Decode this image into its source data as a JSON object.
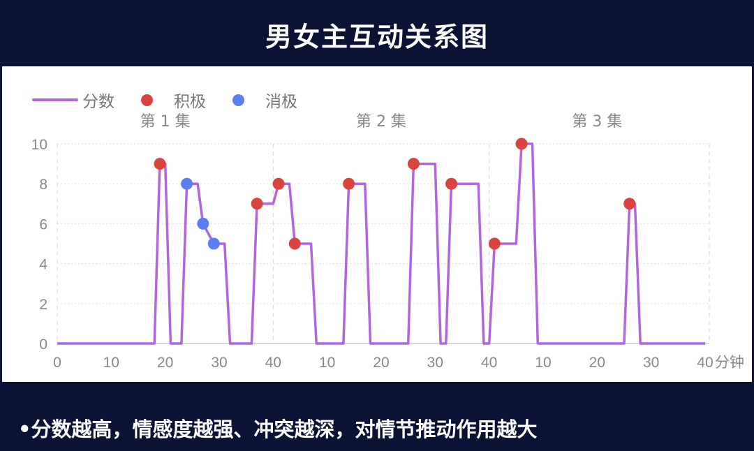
{
  "title": "男女主互动关系图",
  "footer": "•分数越高，情感度越强、冲突越深，对情节推动作用越大",
  "chart_data": {
    "type": "line",
    "title": "",
    "legend": {
      "placement": "top-left",
      "items": [
        {
          "label": "分数",
          "kind": "line",
          "color": "#b265df"
        },
        {
          "label": "积极",
          "kind": "dot",
          "color": "#d9453e"
        },
        {
          "label": "消极",
          "kind": "dot",
          "color": "#5b7ef0"
        }
      ]
    },
    "episodes": [
      "第 1 集",
      "第 2 集",
      "第 3 集"
    ],
    "xlabel": "分钟",
    "x_ticks": [
      "0",
      "10",
      "20",
      "30",
      "40",
      "10",
      "20",
      "30",
      "40",
      "10",
      "20",
      "30",
      "40"
    ],
    "y_ticks": [
      "0",
      "2",
      "4",
      "6",
      "8",
      "10"
    ],
    "ylim": [
      0,
      10
    ],
    "xlim_per_episode": [
      0,
      40
    ],
    "grid": true,
    "series": [
      {
        "name": "分数",
        "color": "#b265df",
        "points": [
          {
            "episode": 1,
            "minute": 0,
            "score": 0
          },
          {
            "episode": 1,
            "minute": 18,
            "score": 0
          },
          {
            "episode": 1,
            "minute": 19,
            "score": 9
          },
          {
            "episode": 1,
            "minute": 20,
            "score": 9
          },
          {
            "episode": 1,
            "minute": 21,
            "score": 0
          },
          {
            "episode": 1,
            "minute": 23,
            "score": 0
          },
          {
            "episode": 1,
            "minute": 24,
            "score": 8
          },
          {
            "episode": 1,
            "minute": 26,
            "score": 8
          },
          {
            "episode": 1,
            "minute": 27,
            "score": 6
          },
          {
            "episode": 1,
            "minute": 29,
            "score": 5
          },
          {
            "episode": 1,
            "minute": 31,
            "score": 5
          },
          {
            "episode": 1,
            "minute": 32,
            "score": 0
          },
          {
            "episode": 1,
            "minute": 36,
            "score": 0
          },
          {
            "episode": 1,
            "minute": 37,
            "score": 7
          },
          {
            "episode": 1,
            "minute": 40,
            "score": 7
          },
          {
            "episode": 2,
            "minute": 1,
            "score": 8
          },
          {
            "episode": 2,
            "minute": 3,
            "score": 8
          },
          {
            "episode": 2,
            "minute": 4,
            "score": 5
          },
          {
            "episode": 2,
            "minute": 7,
            "score": 5
          },
          {
            "episode": 2,
            "minute": 8,
            "score": 0
          },
          {
            "episode": 2,
            "minute": 13,
            "score": 0
          },
          {
            "episode": 2,
            "minute": 14,
            "score": 8
          },
          {
            "episode": 2,
            "minute": 17,
            "score": 8
          },
          {
            "episode": 2,
            "minute": 18,
            "score": 0
          },
          {
            "episode": 2,
            "minute": 25,
            "score": 0
          },
          {
            "episode": 2,
            "minute": 26,
            "score": 9
          },
          {
            "episode": 2,
            "minute": 30,
            "score": 9
          },
          {
            "episode": 2,
            "minute": 31,
            "score": 0
          },
          {
            "episode": 2,
            "minute": 32,
            "score": 0
          },
          {
            "episode": 2,
            "minute": 33,
            "score": 8
          },
          {
            "episode": 2,
            "minute": 38,
            "score": 8
          },
          {
            "episode": 2,
            "minute": 39,
            "score": 0
          },
          {
            "episode": 2,
            "minute": 40,
            "score": 0
          },
          {
            "episode": 3,
            "minute": 1,
            "score": 5
          },
          {
            "episode": 3,
            "minute": 5,
            "score": 5
          },
          {
            "episode": 3,
            "minute": 6,
            "score": 10
          },
          {
            "episode": 3,
            "minute": 8,
            "score": 10
          },
          {
            "episode": 3,
            "minute": 9,
            "score": 0
          },
          {
            "episode": 3,
            "minute": 25,
            "score": 0
          },
          {
            "episode": 3,
            "minute": 26,
            "score": 7
          },
          {
            "episode": 3,
            "minute": 27,
            "score": 7
          },
          {
            "episode": 3,
            "minute": 28,
            "score": 0
          },
          {
            "episode": 3,
            "minute": 40,
            "score": 0
          }
        ]
      },
      {
        "name": "积极",
        "color": "#d9453e",
        "points": [
          {
            "episode": 1,
            "minute": 19,
            "score": 9
          },
          {
            "episode": 1,
            "minute": 37,
            "score": 7
          },
          {
            "episode": 2,
            "minute": 1,
            "score": 8
          },
          {
            "episode": 2,
            "minute": 4,
            "score": 5
          },
          {
            "episode": 2,
            "minute": 14,
            "score": 8
          },
          {
            "episode": 2,
            "minute": 26,
            "score": 9
          },
          {
            "episode": 2,
            "minute": 33,
            "score": 8
          },
          {
            "episode": 3,
            "minute": 1,
            "score": 5
          },
          {
            "episode": 3,
            "minute": 6,
            "score": 10
          },
          {
            "episode": 3,
            "minute": 26,
            "score": 7
          }
        ]
      },
      {
        "name": "消极",
        "color": "#5b7ef0",
        "points": [
          {
            "episode": 1,
            "minute": 24,
            "score": 8
          },
          {
            "episode": 1,
            "minute": 27,
            "score": 6
          },
          {
            "episode": 1,
            "minute": 29,
            "score": 5
          }
        ]
      }
    ]
  }
}
